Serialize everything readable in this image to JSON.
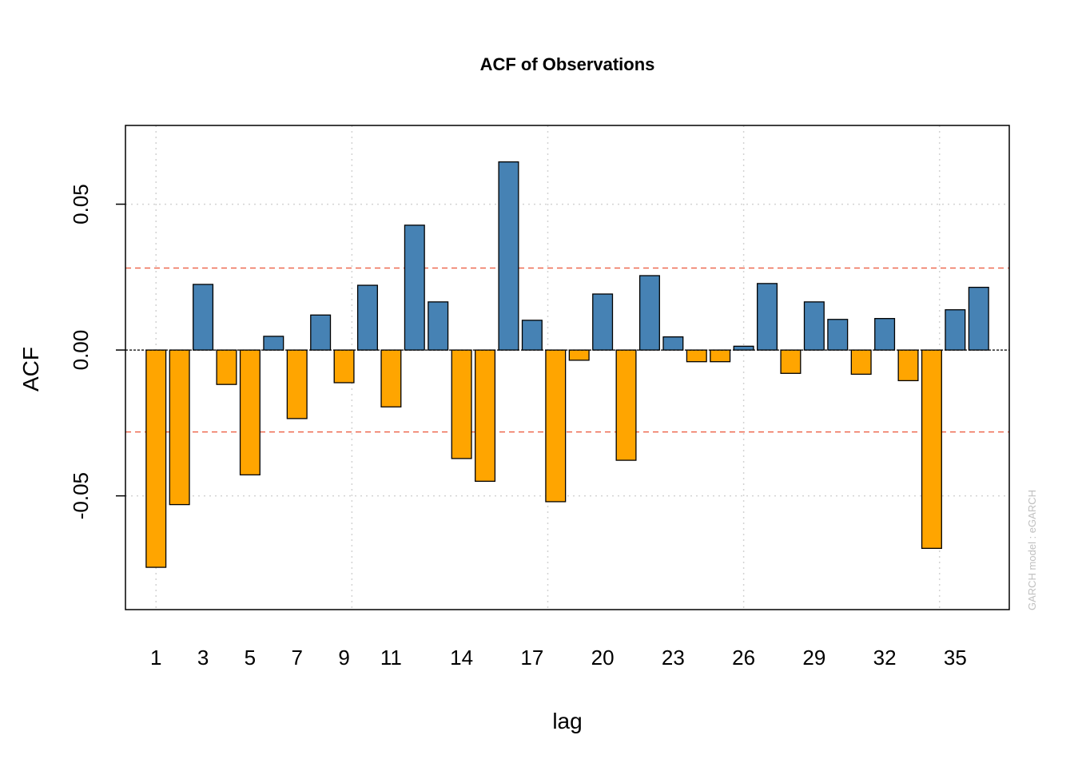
{
  "chart_data": {
    "type": "bar",
    "title": "ACF of Observations",
    "xlabel": "lag",
    "ylabel": "ACF",
    "watermark": "GARCH model :  eGARCH",
    "lags": [
      1,
      2,
      3,
      4,
      5,
      6,
      7,
      8,
      9,
      10,
      11,
      12,
      13,
      14,
      15,
      16,
      17,
      18,
      19,
      20,
      21,
      22,
      23,
      24,
      25,
      26,
      27,
      28,
      29,
      30,
      31,
      32,
      33,
      34,
      35,
      36
    ],
    "values": [
      -0.0745,
      -0.053,
      0.0225,
      -0.0118,
      -0.0428,
      0.0047,
      -0.0235,
      0.012,
      -0.0112,
      0.0222,
      -0.0195,
      0.0428,
      0.0165,
      -0.0372,
      -0.045,
      0.0645,
      0.0102,
      -0.052,
      -0.0035,
      0.0192,
      -0.0378,
      0.0255,
      0.0045,
      -0.004,
      -0.004,
      0.0013,
      0.0228,
      -0.008,
      0.0165,
      0.0105,
      -0.0083,
      0.0108,
      -0.0105,
      -0.068,
      0.0138,
      0.0215
    ],
    "x_tick_labels": [
      "1",
      "3",
      "5",
      "7",
      "9",
      "11",
      "14",
      "17",
      "20",
      "23",
      "26",
      "29",
      "32",
      "35"
    ],
    "x_tick_lags": [
      1,
      3,
      5,
      7,
      9,
      11,
      14,
      17,
      20,
      23,
      26,
      29,
      32,
      35
    ],
    "y_tick_labels": [
      "-0.05",
      "0.00",
      "0.05"
    ],
    "y_tick_values": [
      -0.05,
      0.0,
      0.05
    ],
    "ylim": [
      -0.089,
      0.077
    ],
    "xlim": [
      -0.3,
      37.3
    ],
    "grid_x_lags": [
      1,
      9.333,
      17.667,
      26,
      34.333
    ],
    "confidence_bound": 0.0281,
    "grid": true,
    "colors": {
      "positive": "#4682B4",
      "negative": "#FFA500",
      "bound_line": "#EE6A50",
      "grid": "#D3D3D3",
      "zero_line": "#000000"
    }
  }
}
